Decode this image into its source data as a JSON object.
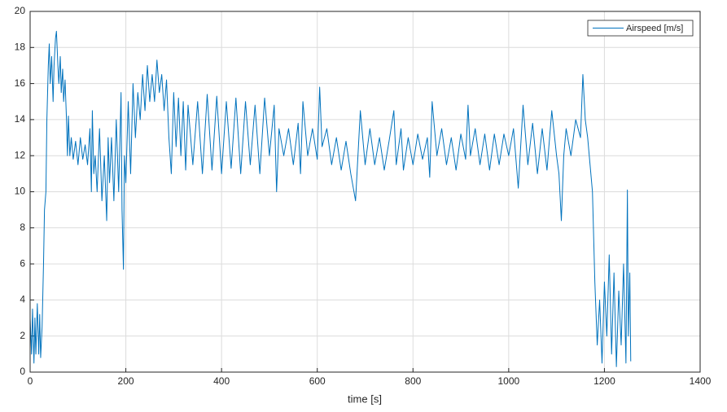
{
  "chart_data": {
    "type": "line",
    "xlabel": "time [s]",
    "x": [
      0,
      3,
      5,
      8,
      10,
      12,
      15,
      18,
      20,
      22,
      25,
      28,
      30,
      33,
      35,
      38,
      40,
      42,
      45,
      48,
      50,
      53,
      55,
      58,
      60,
      63,
      65,
      68,
      70,
      73,
      76,
      78,
      80,
      83,
      86,
      90,
      95,
      100,
      105,
      110,
      115,
      120,
      125,
      128,
      130,
      133,
      136,
      140,
      145,
      150,
      155,
      160,
      163,
      166,
      170,
      175,
      180,
      185,
      190,
      192,
      195,
      197,
      200,
      205,
      210,
      215,
      220,
      225,
      230,
      235,
      240,
      245,
      250,
      255,
      260,
      265,
      270,
      275,
      280,
      285,
      290,
      295,
      300,
      305,
      310,
      315,
      320,
      325,
      330,
      340,
      350,
      360,
      370,
      380,
      390,
      400,
      410,
      420,
      430,
      440,
      450,
      460,
      470,
      480,
      490,
      500,
      510,
      515,
      520,
      530,
      540,
      550,
      560,
      565,
      570,
      580,
      590,
      600,
      605,
      610,
      620,
      630,
      640,
      650,
      660,
      670,
      680,
      690,
      700,
      710,
      720,
      730,
      740,
      750,
      760,
      765,
      775,
      780,
      790,
      800,
      810,
      820,
      830,
      835,
      840,
      850,
      860,
      870,
      880,
      890,
      900,
      910,
      915,
      920,
      930,
      940,
      950,
      960,
      970,
      980,
      990,
      1000,
      1010,
      1020,
      1030,
      1040,
      1050,
      1060,
      1070,
      1080,
      1090,
      1100,
      1105,
      1110,
      1115,
      1120,
      1130,
      1140,
      1150,
      1155,
      1160,
      1165,
      1170,
      1175,
      1180,
      1185,
      1190,
      1195,
      1200,
      1205,
      1210,
      1215,
      1220,
      1225,
      1230,
      1235,
      1240,
      1245,
      1248,
      1250,
      1253,
      1255
    ],
    "series": [
      {
        "name": "Airspeed [m/s]",
        "color": "#0072bd",
        "values": [
          3,
          1,
          3.5,
          0.5,
          3,
          1,
          3.8,
          1,
          3.2,
          0.8,
          2.5,
          6,
          9,
          10,
          14,
          17,
          18.2,
          16,
          17.5,
          15,
          17,
          18.5,
          18.9,
          17,
          16,
          17.5,
          15.5,
          16.8,
          15,
          16.2,
          14,
          12,
          14.2,
          12,
          13,
          11.8,
          12.8,
          11.5,
          13,
          11.8,
          12.6,
          11.5,
          13.5,
          10,
          14.5,
          11,
          12,
          10,
          13.5,
          9.5,
          12,
          8.4,
          13,
          10.5,
          13,
          9.5,
          14,
          10,
          15.5,
          9,
          5.7,
          12,
          10.5,
          15,
          11,
          16,
          13,
          15.5,
          14,
          16.5,
          14.5,
          17,
          15,
          16.5,
          15,
          17.3,
          15.5,
          16.5,
          14.5,
          16.2,
          13,
          11,
          15.5,
          12.5,
          15.2,
          12,
          15,
          11.2,
          14.8,
          11.5,
          15,
          11,
          15.4,
          11.2,
          15.3,
          11,
          15,
          11.3,
          15.2,
          11,
          15,
          11.5,
          14.8,
          11,
          15.2,
          12,
          14.8,
          10,
          13.5,
          12,
          13.5,
          11.5,
          13.8,
          11,
          15,
          12,
          13.5,
          11.8,
          15.8,
          12.5,
          13.5,
          11.5,
          13,
          11.2,
          12.8,
          11,
          9.5,
          14.5,
          11.5,
          13.5,
          11.5,
          13,
          11.2,
          12.8,
          14.5,
          11.5,
          13.5,
          11.2,
          13,
          11.5,
          13.2,
          11.8,
          13,
          10.8,
          15,
          12,
          13.5,
          11.5,
          13,
          11.2,
          13.2,
          11.8,
          14.8,
          12,
          13.5,
          11.5,
          13.2,
          11.2,
          13.2,
          11.5,
          13.2,
          12,
          13.5,
          10.2,
          14.8,
          11.5,
          13.8,
          11,
          13.5,
          11.2,
          14.5,
          12,
          11,
          8.4,
          12,
          13.5,
          12,
          14,
          13,
          16.5,
          14,
          13,
          11.5,
          10,
          5,
          1.5,
          4,
          0.5,
          5,
          2,
          6.5,
          1,
          5.5,
          0.3,
          4.5,
          1.5,
          6,
          0.5,
          10.1,
          2,
          5.5,
          0.6
        ]
      }
    ],
    "xlim": [
      0,
      1400
    ],
    "xticks": [
      0,
      200,
      400,
      600,
      800,
      1000,
      1200,
      1400
    ],
    "ylim": [
      0,
      20
    ],
    "yticks": [
      0,
      2,
      4,
      6,
      8,
      10,
      12,
      14,
      16,
      18,
      20
    ],
    "grid": true,
    "legend": "upper right"
  }
}
